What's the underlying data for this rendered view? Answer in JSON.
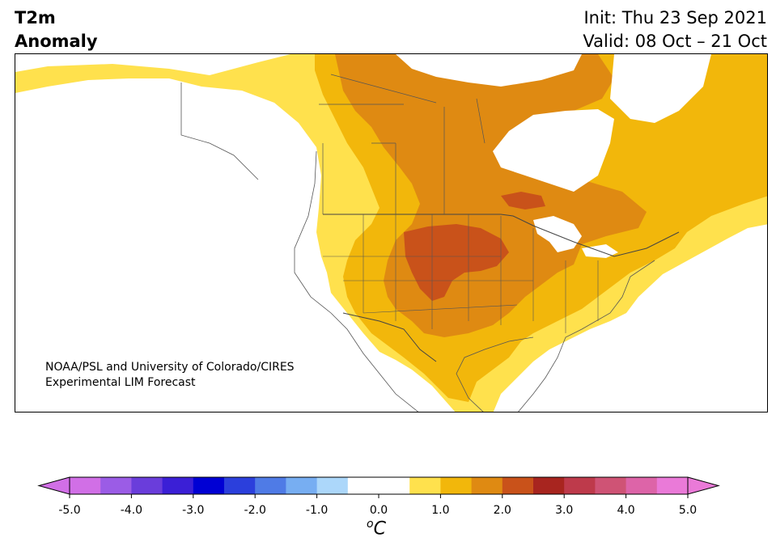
{
  "title": {
    "line1": "T2m",
    "line2": "Anomaly"
  },
  "init": "Init: Thu 23 Sep 2021",
  "valid": "Valid: 08 Oct – 21 Oct",
  "credit": {
    "line1": "NOAA/PSL and University of Colorado/CIRES",
    "line2": "Experimental LIM Forecast"
  },
  "colorbar": {
    "unit_symbol": "o",
    "unit_letter": "C",
    "ticks": [
      "-5.0",
      "-4.0",
      "-3.0",
      "-2.0",
      "-1.0",
      "0.0",
      "1.0",
      "2.0",
      "3.0",
      "4.0",
      "5.0"
    ],
    "colors": [
      "#d16fe6",
      "#9b5ce6",
      "#6a3ddb",
      "#3b1fd6",
      "#0000d4",
      "#2b3fdc",
      "#4f7be6",
      "#77aef2",
      "#acd7fa",
      "#ffffff",
      "#ffffff",
      "#ffe14d",
      "#f2b70b",
      "#df8a12",
      "#c9521a",
      "#a8251f",
      "#be3a4b",
      "#cf5375",
      "#dd64a8",
      "#ea7ad8"
    ],
    "under_color": "#d16fe6",
    "over_color": "#ea7ad8"
  },
  "colors": {
    "land": "#ffffff",
    "pale_yellow": "#ffe14d",
    "yellow": "#f2b70b",
    "orange": "#df8a12",
    "dark_orange": "#c9521a",
    "border": "#444444"
  }
}
